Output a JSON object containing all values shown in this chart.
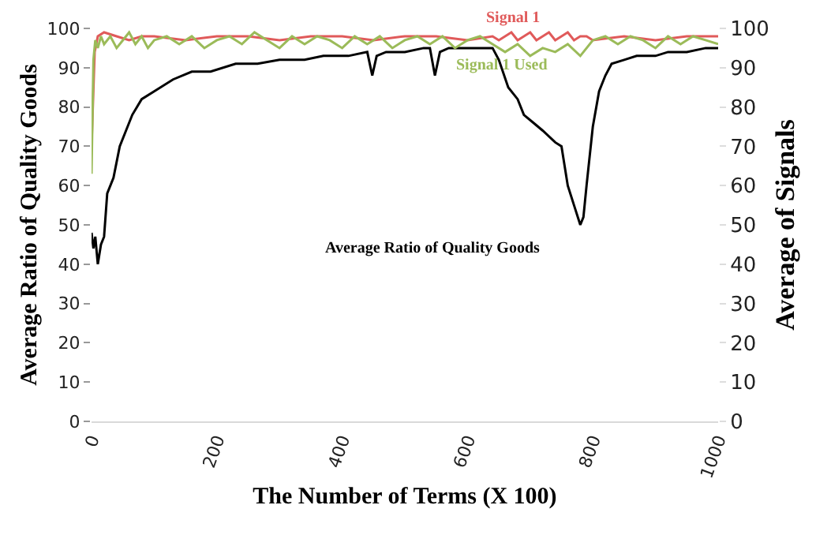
{
  "chart_data": {
    "type": "line",
    "xlabel": "The Number of Terms (X 100)",
    "ylabel": "Average Ratio of Quality Goods",
    "y2label": "Average of Signals",
    "xlim": [
      0,
      1000
    ],
    "xticks": [
      0,
      200,
      400,
      600,
      800,
      1000
    ],
    "ylim": [
      0,
      100
    ],
    "yticks": [
      0,
      10,
      20,
      30,
      40,
      50,
      60,
      70,
      80,
      90,
      100
    ],
    "y2lim": [
      0,
      100
    ],
    "y2ticks": [
      0,
      10,
      20,
      30,
      40,
      50,
      60,
      70,
      80,
      90,
      100
    ],
    "grid": false,
    "legend": false,
    "marker": "none",
    "line_style": "solid",
    "series": [
      {
        "name": "Signal 1",
        "color": "#e05a5a",
        "axis": "y2",
        "x": [
          0,
          5,
          10,
          20,
          40,
          60,
          80,
          100,
          150,
          200,
          250,
          300,
          350,
          400,
          450,
          500,
          550,
          600,
          640,
          650,
          660,
          670,
          680,
          690,
          700,
          710,
          720,
          730,
          740,
          750,
          760,
          770,
          780,
          790,
          800,
          850,
          900,
          950,
          1000
        ],
        "values": [
          70,
          94,
          98,
          99,
          98,
          97,
          98,
          98,
          97,
          98,
          98,
          97,
          98,
          98,
          97,
          98,
          98,
          97,
          98,
          97,
          98,
          99,
          97,
          98,
          99,
          97,
          98,
          99,
          97,
          98,
          99,
          97,
          98,
          98,
          97,
          98,
          97,
          98,
          98
        ]
      },
      {
        "name": "Signal 1 Used",
        "color": "#9bbb59",
        "axis": "y2",
        "x": [
          0,
          3,
          6,
          10,
          15,
          20,
          30,
          40,
          50,
          60,
          70,
          80,
          90,
          100,
          120,
          140,
          160,
          180,
          200,
          220,
          240,
          260,
          280,
          300,
          320,
          340,
          360,
          380,
          400,
          420,
          440,
          460,
          480,
          500,
          520,
          540,
          560,
          580,
          600,
          620,
          640,
          660,
          680,
          700,
          720,
          740,
          760,
          780,
          800,
          820,
          840,
          860,
          880,
          900,
          920,
          940,
          960,
          980,
          1000
        ],
        "values": [
          63,
          92,
          97,
          95,
          98,
          96,
          98,
          95,
          97,
          99,
          96,
          98,
          95,
          97,
          98,
          96,
          98,
          95,
          97,
          98,
          96,
          99,
          97,
          95,
          98,
          96,
          98,
          97,
          95,
          98,
          96,
          98,
          95,
          97,
          98,
          96,
          98,
          95,
          97,
          98,
          96,
          94,
          96,
          93,
          95,
          94,
          96,
          93,
          97,
          98,
          96,
          98,
          97,
          95,
          98,
          96,
          98,
          97,
          96
        ]
      },
      {
        "name": "Average Ratio of Quality Goods",
        "color": "#000000",
        "x": [
          0,
          3,
          6,
          10,
          15,
          20,
          25,
          35,
          45,
          55,
          65,
          80,
          100,
          130,
          160,
          190,
          230,
          265,
          300,
          340,
          370,
          410,
          440,
          448,
          455,
          470,
          500,
          530,
          540,
          548,
          556,
          570,
          600,
          620,
          640,
          650,
          665,
          680,
          690,
          705,
          720,
          740,
          750,
          760,
          770,
          780,
          785,
          790,
          800,
          810,
          820,
          830,
          850,
          870,
          900,
          920,
          950,
          980,
          1000
        ],
        "values": [
          48,
          44,
          47,
          40,
          45,
          47,
          58,
          62,
          70,
          74,
          78,
          82,
          84,
          87,
          89,
          89,
          91,
          91,
          92,
          92,
          93,
          93,
          94,
          88,
          93,
          94,
          94,
          95,
          95,
          88,
          94,
          95,
          95,
          95,
          95,
          92,
          85,
          82,
          78,
          76,
          74,
          71,
          70,
          60,
          55,
          50,
          52,
          60,
          75,
          84,
          88,
          91,
          92,
          93,
          93,
          94,
          94,
          95,
          95
        ]
      }
    ]
  }
}
